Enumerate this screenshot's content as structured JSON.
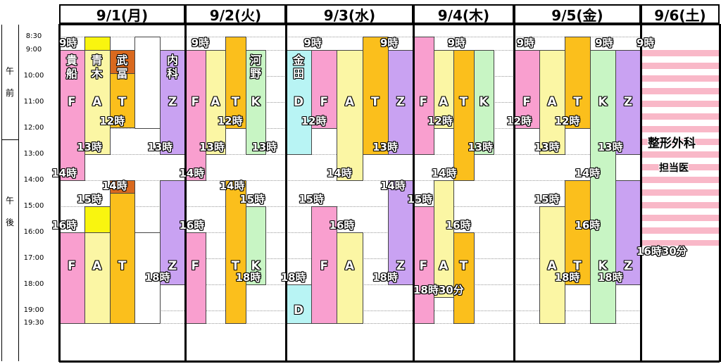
{
  "colors": {
    "F": "#f99fcf",
    "A": "#fbf6a4",
    "T": "#fbbf1c",
    "K": "#c8f5c4",
    "Z": "#c9a2f2",
    "D": "#b8f4f4",
    "yellow": "#f9f50f",
    "orange": "#d9691e",
    "white": "#ffffff",
    "stripe": "#f9b8c8"
  },
  "days": [
    "9/1(月)",
    "9/2(火)",
    "9/3(水)",
    "9/4(木)",
    "9/5(金)",
    "9/6(土)"
  ],
  "time_axis": {
    "am_label": "午\n前",
    "pm_label": "午\n後",
    "ticks": [
      "8:30",
      "9:00",
      "10:00",
      "11:00",
      "12:00",
      "13:00",
      "14:00",
      "15:00",
      "16:00",
      "17:00",
      "18:00",
      "19:00",
      "19:30"
    ]
  },
  "blocks": [
    {
      "day": 0,
      "lane": 0,
      "start": 9.0,
      "end": 14.0,
      "color": "F"
    },
    {
      "day": 0,
      "lane": 1,
      "start": 8.5,
      "end": 9.0,
      "color": "yellow"
    },
    {
      "day": 0,
      "lane": 1,
      "start": 9.0,
      "end": 13.0,
      "color": "A"
    },
    {
      "day": 0,
      "lane": 2,
      "start": 9.0,
      "end": 9.9,
      "color": "orange"
    },
    {
      "day": 0,
      "lane": 2,
      "start": 9.9,
      "end": 12.0,
      "color": "T"
    },
    {
      "day": 0,
      "lane": 3,
      "start": 8.5,
      "end": 12.0,
      "color": "white"
    },
    {
      "day": 0,
      "lane": 4,
      "start": 9.0,
      "end": 13.0,
      "color": "Z"
    },
    {
      "day": 0,
      "lane": 2,
      "start": 14.0,
      "end": 14.5,
      "color": "orange"
    },
    {
      "day": 0,
      "lane": 2,
      "start": 14.5,
      "end": 19.5,
      "color": "T"
    },
    {
      "day": 0,
      "lane": 1,
      "start": 15.0,
      "end": 19.5,
      "color": "A"
    },
    {
      "day": 0,
      "lane": 1,
      "start": 15.0,
      "end": 16.0,
      "color": "yellow"
    },
    {
      "day": 0,
      "lane": 0,
      "start": 16.0,
      "end": 19.5,
      "color": "F"
    },
    {
      "day": 0,
      "lane": 3,
      "start": 16.0,
      "end": 19.5,
      "color": "white"
    },
    {
      "day": 0,
      "lane": 4,
      "start": 14.0,
      "end": 18.0,
      "color": "Z"
    },
    {
      "day": 1,
      "lane": 0,
      "start": 9.0,
      "end": 14.0,
      "color": "F"
    },
    {
      "day": 1,
      "lane": 1,
      "start": 9.0,
      "end": 13.0,
      "color": "A"
    },
    {
      "day": 1,
      "lane": 2,
      "start": 8.5,
      "end": 12.0,
      "color": "T"
    },
    {
      "day": 1,
      "lane": 3,
      "start": 9.0,
      "end": 13.0,
      "color": "K"
    },
    {
      "day": 1,
      "lane": 0,
      "start": 16.0,
      "end": 19.5,
      "color": "F"
    },
    {
      "day": 1,
      "lane": 2,
      "start": 14.0,
      "end": 19.5,
      "color": "T"
    },
    {
      "day": 1,
      "lane": 3,
      "start": 15.0,
      "end": 18.0,
      "color": "K"
    },
    {
      "day": 2,
      "lane": 0,
      "start": 9.0,
      "end": 13.0,
      "color": "D"
    },
    {
      "day": 2,
      "lane": 1,
      "start": 9.0,
      "end": 12.0,
      "color": "F"
    },
    {
      "day": 2,
      "lane": 2,
      "start": 9.0,
      "end": 14.0,
      "color": "A"
    },
    {
      "day": 2,
      "lane": 3,
      "start": 8.5,
      "end": 13.0,
      "color": "T"
    },
    {
      "day": 2,
      "lane": 4,
      "start": 9.0,
      "end": 13.0,
      "color": "Z"
    },
    {
      "day": 2,
      "lane": 0,
      "start": 18.0,
      "end": 19.5,
      "color": "D"
    },
    {
      "day": 2,
      "lane": 1,
      "start": 15.0,
      "end": 19.5,
      "color": "F"
    },
    {
      "day": 2,
      "lane": 2,
      "start": 16.0,
      "end": 19.5,
      "color": "A"
    },
    {
      "day": 2,
      "lane": 4,
      "start": 14.0,
      "end": 18.0,
      "color": "Z"
    },
    {
      "day": 3,
      "lane": 0,
      "start": 8.5,
      "end": 13.0,
      "color": "F"
    },
    {
      "day": 3,
      "lane": 1,
      "start": 9.0,
      "end": 12.0,
      "color": "A"
    },
    {
      "day": 3,
      "lane": 2,
      "start": 9.0,
      "end": 14.0,
      "color": "T"
    },
    {
      "day": 3,
      "lane": 3,
      "start": 9.0,
      "end": 13.0,
      "color": "K"
    },
    {
      "day": 3,
      "lane": 0,
      "start": 15.0,
      "end": 19.5,
      "color": "F"
    },
    {
      "day": 3,
      "lane": 1,
      "start": 14.0,
      "end": 18.5,
      "color": "A"
    },
    {
      "day": 3,
      "lane": 2,
      "start": 16.0,
      "end": 19.5,
      "color": "T"
    },
    {
      "day": 4,
      "lane": 0,
      "start": 9.0,
      "end": 12.0,
      "color": "F"
    },
    {
      "day": 4,
      "lane": 1,
      "start": 9.0,
      "end": 13.0,
      "color": "A"
    },
    {
      "day": 4,
      "lane": 2,
      "start": 8.5,
      "end": 12.0,
      "color": "T"
    },
    {
      "day": 4,
      "lane": 3,
      "start": 9.0,
      "end": 19.5,
      "color": "K"
    },
    {
      "day": 4,
      "lane": 4,
      "start": 9.0,
      "end": 13.0,
      "color": "Z"
    },
    {
      "day": 4,
      "lane": 1,
      "start": 15.0,
      "end": 19.5,
      "color": "A"
    },
    {
      "day": 4,
      "lane": 2,
      "start": 14.0,
      "end": 18.0,
      "color": "T"
    },
    {
      "day": 4,
      "lane": 4,
      "start": 14.0,
      "end": 18.0,
      "color": "Z"
    },
    {
      "day": 5,
      "lane": 0,
      "start": 9.0,
      "end": 16.5,
      "color": "stripe"
    }
  ],
  "letters": [
    {
      "day": 0,
      "lane": 0,
      "t": 11.0,
      "text": "F"
    },
    {
      "day": 0,
      "lane": 1,
      "t": 11.0,
      "text": "A"
    },
    {
      "day": 0,
      "lane": 2,
      "t": 11.0,
      "text": "T"
    },
    {
      "day": 0,
      "lane": 4,
      "t": 11.0,
      "text": "Z"
    },
    {
      "day": 0,
      "lane": 0,
      "t": 17.3,
      "text": "F"
    },
    {
      "day": 0,
      "lane": 1,
      "t": 17.3,
      "text": "A"
    },
    {
      "day": 0,
      "lane": 2,
      "t": 17.3,
      "text": "T"
    },
    {
      "day": 0,
      "lane": 4,
      "t": 17.3,
      "text": "Z"
    },
    {
      "day": 1,
      "lane": 0,
      "t": 11.0,
      "text": "F"
    },
    {
      "day": 1,
      "lane": 1,
      "t": 11.0,
      "text": "A"
    },
    {
      "day": 1,
      "lane": 2,
      "t": 11.0,
      "text": "T"
    },
    {
      "day": 1,
      "lane": 3,
      "t": 11.0,
      "text": "K"
    },
    {
      "day": 1,
      "lane": 0,
      "t": 17.3,
      "text": "F"
    },
    {
      "day": 1,
      "lane": 2,
      "t": 17.3,
      "text": "T"
    },
    {
      "day": 1,
      "lane": 3,
      "t": 17.3,
      "text": "K"
    },
    {
      "day": 2,
      "lane": 0,
      "t": 11.0,
      "text": "D"
    },
    {
      "day": 2,
      "lane": 1,
      "t": 11.0,
      "text": "F"
    },
    {
      "day": 2,
      "lane": 2,
      "t": 11.0,
      "text": "A"
    },
    {
      "day": 2,
      "lane": 3,
      "t": 11.0,
      "text": "T"
    },
    {
      "day": 2,
      "lane": 4,
      "t": 11.0,
      "text": "Z"
    },
    {
      "day": 2,
      "lane": 1,
      "t": 17.3,
      "text": "F"
    },
    {
      "day": 2,
      "lane": 2,
      "t": 17.3,
      "text": "A"
    },
    {
      "day": 2,
      "lane": 4,
      "t": 17.3,
      "text": "Z"
    },
    {
      "day": 2,
      "lane": 0,
      "t": 19.0,
      "text": "D"
    },
    {
      "day": 3,
      "lane": 0,
      "t": 11.0,
      "text": "F"
    },
    {
      "day": 3,
      "lane": 1,
      "t": 11.0,
      "text": "A"
    },
    {
      "day": 3,
      "lane": 2,
      "t": 11.0,
      "text": "T"
    },
    {
      "day": 3,
      "lane": 3,
      "t": 11.0,
      "text": "K"
    },
    {
      "day": 3,
      "lane": 0,
      "t": 17.3,
      "text": "F"
    },
    {
      "day": 3,
      "lane": 1,
      "t": 17.3,
      "text": "A"
    },
    {
      "day": 3,
      "lane": 2,
      "t": 17.3,
      "text": "T"
    },
    {
      "day": 4,
      "lane": 0,
      "t": 11.0,
      "text": "F"
    },
    {
      "day": 4,
      "lane": 1,
      "t": 11.0,
      "text": "A"
    },
    {
      "day": 4,
      "lane": 2,
      "t": 11.0,
      "text": "T"
    },
    {
      "day": 4,
      "lane": 3,
      "t": 11.0,
      "text": "K"
    },
    {
      "day": 4,
      "lane": 4,
      "t": 11.0,
      "text": "Z"
    },
    {
      "day": 4,
      "lane": 1,
      "t": 17.3,
      "text": "A"
    },
    {
      "day": 4,
      "lane": 2,
      "t": 17.3,
      "text": "T"
    },
    {
      "day": 4,
      "lane": 3,
      "t": 17.3,
      "text": "K"
    },
    {
      "day": 4,
      "lane": 4,
      "t": 17.3,
      "text": "Z"
    }
  ],
  "vnames": [
    {
      "day": 0,
      "lane": 0,
      "text": "貴\n船"
    },
    {
      "day": 0,
      "lane": 1,
      "text": "青\n木"
    },
    {
      "day": 0,
      "lane": 2,
      "text": "武\n冨"
    },
    {
      "day": 0,
      "lane": 4,
      "text": "内\n科"
    },
    {
      "day": 1,
      "lane": 3,
      "text": "河\n野"
    },
    {
      "day": 2,
      "lane": 0,
      "text": "金\n田"
    }
  ],
  "time_labels": [
    {
      "day": 0,
      "anchor": 0,
      "t": 8.65,
      "text": "9時"
    },
    {
      "day": 0,
      "anchor": 1.6,
      "t": 11.65,
      "text": "12時"
    },
    {
      "day": 0,
      "anchor": 0.7,
      "t": 12.65,
      "text": "13時"
    },
    {
      "day": 0,
      "anchor": 3.5,
      "t": 12.65,
      "text": "13時"
    },
    {
      "day": 0,
      "anchor": -0.3,
      "t": 13.65,
      "text": "14時"
    },
    {
      "day": 0,
      "anchor": 1.7,
      "t": 14.15,
      "text": "14時"
    },
    {
      "day": 0,
      "anchor": 0.7,
      "t": 14.65,
      "text": "15時"
    },
    {
      "day": 0,
      "anchor": -0.3,
      "t": 15.65,
      "text": "16時"
    },
    {
      "day": 0,
      "anchor": 3.4,
      "t": 17.65,
      "text": "18時"
    },
    {
      "day": 1,
      "anchor": 0.3,
      "t": 8.65,
      "text": "9時"
    },
    {
      "day": 1,
      "anchor": -0.3,
      "t": 13.65,
      "text": "14時"
    },
    {
      "day": 1,
      "anchor": 1.6,
      "t": 11.65,
      "text": "12時"
    },
    {
      "day": 1,
      "anchor": 0.7,
      "t": 12.65,
      "text": "13時"
    },
    {
      "day": 1,
      "anchor": 3.3,
      "t": 12.65,
      "text": "13時"
    },
    {
      "day": 1,
      "anchor": 1.7,
      "t": 14.15,
      "text": "14時"
    },
    {
      "day": 1,
      "anchor": 2.7,
      "t": 14.65,
      "text": "15時"
    },
    {
      "day": 1,
      "anchor": -0.3,
      "t": 15.65,
      "text": "16時"
    },
    {
      "day": 1,
      "anchor": 2.5,
      "t": 17.65,
      "text": "18時"
    },
    {
      "day": 2,
      "anchor": 0.7,
      "t": 8.65,
      "text": "9時"
    },
    {
      "day": 2,
      "anchor": 3.7,
      "t": 8.65,
      "text": "9時"
    },
    {
      "day": 2,
      "anchor": 0.6,
      "t": 11.65,
      "text": "12時"
    },
    {
      "day": 2,
      "anchor": 3.4,
      "t": 12.65,
      "text": "13時"
    },
    {
      "day": 2,
      "anchor": 1.6,
      "t": 13.65,
      "text": "14時"
    },
    {
      "day": 2,
      "anchor": 3.7,
      "t": 14.15,
      "text": "14時"
    },
    {
      "day": 2,
      "anchor": 0.5,
      "t": 14.65,
      "text": "15時"
    },
    {
      "day": 2,
      "anchor": 1.7,
      "t": 15.65,
      "text": "16時"
    },
    {
      "day": 2,
      "anchor": -0.2,
      "t": 17.65,
      "text": "18時"
    },
    {
      "day": 2,
      "anchor": 3.4,
      "t": 17.65,
      "text": "18時"
    },
    {
      "day": 3,
      "anchor": 1.7,
      "t": 8.65,
      "text": "9時"
    },
    {
      "day": 3,
      "anchor": 0.7,
      "t": 11.65,
      "text": "12時"
    },
    {
      "day": 3,
      "anchor": 2.7,
      "t": 12.65,
      "text": "13時"
    },
    {
      "day": 3,
      "anchor": 0.9,
      "t": 13.65,
      "text": "14時"
    },
    {
      "day": 3,
      "anchor": -0.3,
      "t": 14.65,
      "text": "15時"
    },
    {
      "day": 3,
      "anchor": 1.6,
      "t": 15.65,
      "text": "16時"
    },
    {
      "day": 3,
      "anchor": 0.0,
      "t": 18.15,
      "text": "18時30分"
    },
    {
      "day": 4,
      "anchor": 0.1,
      "t": 8.65,
      "text": "9時"
    },
    {
      "day": 4,
      "anchor": 3.2,
      "t": 8.65,
      "text": "9時"
    },
    {
      "day": 4,
      "anchor": -0.3,
      "t": 11.65,
      "text": "12時"
    },
    {
      "day": 4,
      "anchor": 1.6,
      "t": 11.65,
      "text": "12時"
    },
    {
      "day": 4,
      "anchor": 0.8,
      "t": 12.65,
      "text": "13時"
    },
    {
      "day": 4,
      "anchor": 3.3,
      "t": 12.65,
      "text": "13時"
    },
    {
      "day": 4,
      "anchor": 2.4,
      "t": 13.65,
      "text": "14時"
    },
    {
      "day": 4,
      "anchor": 0.8,
      "t": 14.65,
      "text": "15時"
    },
    {
      "day": 4,
      "anchor": 2.4,
      "t": 15.65,
      "text": "16時"
    },
    {
      "day": 4,
      "anchor": 1.6,
      "t": 17.65,
      "text": "18時"
    },
    {
      "day": 4,
      "anchor": 3.3,
      "t": 17.65,
      "text": "18時"
    },
    {
      "day": 5,
      "anchor": 0.8,
      "t": 8.65,
      "text": "9時"
    },
    {
      "day": 5,
      "anchor": 0.0,
      "t": 16.65,
      "text": "16時30分"
    }
  ],
  "saturday": {
    "dept1": "整形外科",
    "dept2": "担当医"
  }
}
